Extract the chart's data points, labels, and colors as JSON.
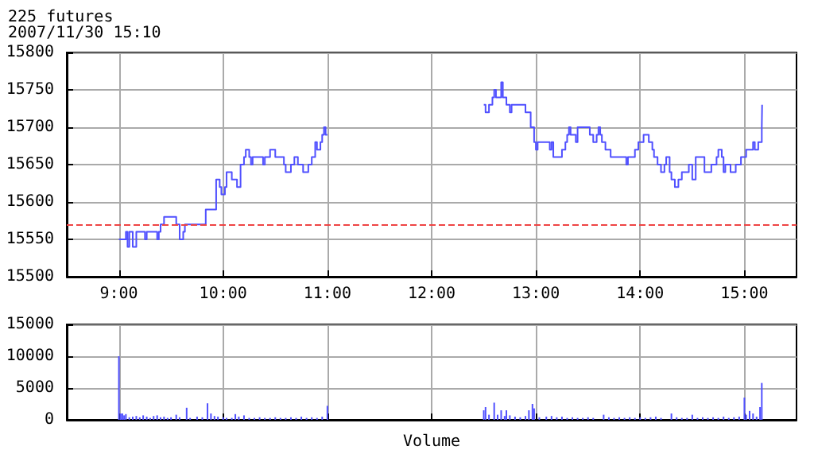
{
  "chart_data": [
    {
      "type": "step",
      "title": "225 futures",
      "subtitle": "2007/11/30 15:10",
      "xlim": [
        8.5,
        15.5
      ],
      "xticks": [
        {
          "value": 9,
          "label": "9:00"
        },
        {
          "value": 10,
          "label": "10:00"
        },
        {
          "value": 11,
          "label": "11:00"
        },
        {
          "value": 12,
          "label": "12:00"
        },
        {
          "value": 13,
          "label": "13:00"
        },
        {
          "value": 14,
          "label": "14:00"
        },
        {
          "value": 15,
          "label": "15:00"
        }
      ],
      "ylim": [
        15500,
        15800
      ],
      "yticks": [
        15500,
        15550,
        15600,
        15650,
        15700,
        15750,
        15800
      ],
      "grid": true,
      "marker": "none",
      "line_style": "solid",
      "ref_lines": [
        {
          "axis": "y",
          "value": 15570,
          "color": "#ee4444",
          "line_style": "dashed"
        }
      ],
      "series": [
        {
          "color": "#5050ff",
          "x": [
            9.0,
            9.067,
            9.083,
            9.1,
            9.133,
            9.167,
            9.25,
            9.267,
            9.367,
            9.383,
            9.4,
            9.433,
            9.55,
            9.583,
            9.617,
            9.633,
            9.833,
            9.933,
            9.967,
            9.983,
            10.017,
            10.033,
            10.083,
            10.133,
            10.167,
            10.2,
            10.217,
            10.25,
            10.267,
            10.283,
            10.383,
            10.4,
            10.45,
            10.5,
            10.583,
            10.6,
            10.65,
            10.683,
            10.717,
            10.767,
            10.817,
            10.85,
            10.883,
            10.9,
            10.933,
            10.95,
            10.967,
            10.983,
            11.0,
            12.5,
            12.517,
            12.55,
            12.583,
            12.6,
            12.617,
            12.667,
            12.683,
            12.717,
            12.75,
            12.767,
            12.9,
            12.95,
            12.983,
            13.0,
            13.017,
            13.133,
            13.15,
            13.167,
            13.25,
            13.283,
            13.3,
            13.317,
            13.333,
            13.383,
            13.4,
            13.517,
            13.55,
            13.583,
            13.6,
            13.617,
            13.633,
            13.667,
            13.717,
            13.867,
            13.883,
            13.95,
            13.983,
            14.033,
            14.083,
            14.117,
            14.133,
            14.167,
            14.2,
            14.233,
            14.25,
            14.283,
            14.3,
            14.333,
            14.367,
            14.4,
            14.467,
            14.5,
            14.533,
            14.617,
            14.683,
            14.733,
            14.75,
            14.783,
            14.8,
            14.817,
            14.867,
            14.917,
            14.967,
            15.017,
            15.083,
            15.1,
            15.133,
            15.167,
            15.17
          ],
          "values": [
            15550,
            15560,
            15540,
            15560,
            15540,
            15560,
            15550,
            15560,
            15550,
            15560,
            15570,
            15580,
            15570,
            15550,
            15560,
            15570,
            15590,
            15630,
            15620,
            15610,
            15620,
            15640,
            15630,
            15620,
            15650,
            15660,
            15670,
            15660,
            15650,
            15660,
            15650,
            15660,
            15670,
            15660,
            15650,
            15640,
            15650,
            15660,
            15650,
            15640,
            15650,
            15660,
            15680,
            15670,
            15680,
            15690,
            15700,
            15690,
            null,
            15730,
            15720,
            15730,
            15740,
            15750,
            15740,
            15760,
            15740,
            15730,
            15720,
            15730,
            15720,
            15700,
            15680,
            15670,
            15680,
            15670,
            15680,
            15660,
            15670,
            15680,
            15690,
            15700,
            15690,
            15680,
            15700,
            15690,
            15680,
            15690,
            15700,
            15690,
            15680,
            15670,
            15660,
            15650,
            15660,
            15670,
            15680,
            15690,
            15680,
            15670,
            15660,
            15650,
            15640,
            15650,
            15660,
            15640,
            15630,
            15620,
            15630,
            15640,
            15650,
            15630,
            15660,
            15640,
            15650,
            15660,
            15670,
            15660,
            15640,
            15650,
            15640,
            15650,
            15660,
            15670,
            15680,
            15670,
            15680,
            15700,
            15730
          ]
        }
      ]
    },
    {
      "type": "bar",
      "xlabel": "Volume",
      "xlim": [
        8.5,
        15.5
      ],
      "xticks": [
        {
          "value": 9,
          "label": null
        },
        {
          "value": 10,
          "label": null
        },
        {
          "value": 11,
          "label": null
        },
        {
          "value": 12,
          "label": null
        },
        {
          "value": 13,
          "label": null
        },
        {
          "value": 14,
          "label": null
        },
        {
          "value": 15,
          "label": null
        }
      ],
      "ylim": [
        0,
        15000
      ],
      "yticks": [
        0,
        5000,
        10000,
        15000
      ],
      "grid": true,
      "tick_labels": "y",
      "series": [
        {
          "color": "#5050ff",
          "x": [
            9.0,
            9.017,
            9.033,
            9.05,
            9.067,
            9.1,
            9.133,
            9.167,
            9.2,
            9.233,
            9.267,
            9.3,
            9.333,
            9.367,
            9.4,
            9.433,
            9.467,
            9.5,
            9.55,
            9.583,
            9.65,
            9.683,
            9.75,
            9.8,
            9.85,
            9.883,
            9.917,
            9.95,
            10.0,
            10.033,
            10.083,
            10.117,
            10.15,
            10.2,
            10.25,
            10.3,
            10.35,
            10.4,
            10.45,
            10.5,
            10.55,
            10.6,
            10.65,
            10.7,
            10.75,
            10.8,
            10.85,
            10.9,
            10.95,
            11.0,
            12.5,
            12.517,
            12.55,
            12.6,
            12.633,
            12.667,
            12.7,
            12.717,
            12.75,
            12.8,
            12.85,
            12.9,
            12.933,
            12.967,
            12.983,
            13.033,
            13.1,
            13.15,
            13.2,
            13.25,
            13.3,
            13.35,
            13.4,
            13.45,
            13.5,
            13.55,
            13.65,
            13.7,
            13.75,
            13.8,
            13.85,
            13.9,
            13.95,
            14.0,
            14.05,
            14.1,
            14.15,
            14.2,
            14.3,
            14.35,
            14.4,
            14.45,
            14.5,
            14.55,
            14.6,
            14.65,
            14.7,
            14.75,
            14.8,
            14.85,
            14.9,
            14.95,
            15.0,
            15.017,
            15.05,
            15.083,
            15.117,
            15.15,
            15.167
          ],
          "values": [
            10000,
            1000,
            1000,
            700,
            900,
            400,
            500,
            600,
            400,
            700,
            500,
            300,
            600,
            700,
            400,
            500,
            300,
            400,
            800,
            400,
            1900,
            300,
            500,
            400,
            2600,
            1000,
            600,
            500,
            400,
            300,
            300,
            900,
            500,
            700,
            300,
            300,
            400,
            300,
            300,
            400,
            300,
            300,
            400,
            300,
            500,
            300,
            400,
            300,
            500,
            2200,
            1500,
            2000,
            800,
            2700,
            800,
            1500,
            600,
            1500,
            700,
            500,
            400,
            600,
            1500,
            2500,
            1800,
            400,
            500,
            600,
            400,
            500,
            300,
            400,
            300,
            300,
            400,
            300,
            800,
            400,
            300,
            400,
            300,
            400,
            300,
            400,
            300,
            400,
            500,
            300,
            1000,
            400,
            300,
            300,
            800,
            300,
            400,
            300,
            400,
            300,
            500,
            300,
            400,
            500,
            3500,
            800,
            1400,
            1000,
            500,
            2000,
            5800
          ]
        }
      ]
    }
  ]
}
